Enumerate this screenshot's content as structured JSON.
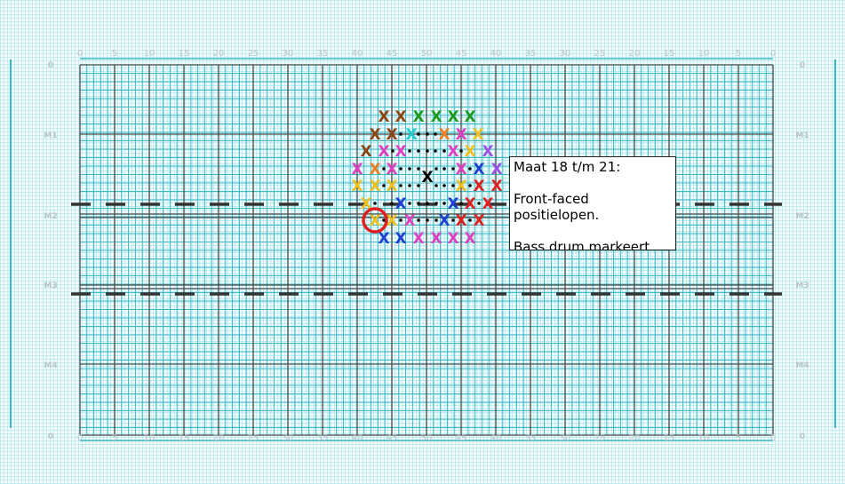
{
  "field": {
    "yard_labels": [
      "0",
      "5",
      "10",
      "15",
      "20",
      "25",
      "30",
      "35",
      "40",
      "45",
      "50",
      "45",
      "40",
      "35",
      "30",
      "25",
      "20",
      "15",
      "10",
      "5",
      "0"
    ],
    "row_labels": [
      "0",
      "M1",
      "M2",
      "M3",
      "M4",
      "0"
    ],
    "colors": {
      "major_line": "#4a4a4a",
      "minor_line": "#3bb9c6",
      "dashed_line": "#333333",
      "highlight_ring": "#e02020"
    }
  },
  "formation": {
    "marks": [
      {
        "symbol": "X",
        "color": "#8b4513"
      },
      {
        "symbol": "X",
        "color": "#8b4513"
      },
      {
        "symbol": "X",
        "color": "#1f9a1f"
      },
      {
        "symbol": "X",
        "color": "#1f9a1f"
      },
      {
        "symbol": "X",
        "color": "#1f9a1f"
      },
      {
        "symbol": "X",
        "color": "#1f9a1f"
      },
      {
        "symbol": "X",
        "color": "#8b4513"
      },
      {
        "symbol": "X",
        "color": "#8b4513"
      },
      {
        "symbol": "X",
        "color": "#22cccc"
      },
      {
        "symbol": "X",
        "color": "#f07f20"
      },
      {
        "symbol": "X",
        "color": "#e040c0"
      },
      {
        "symbol": "X",
        "color": "#f0c020"
      },
      {
        "symbol": "X",
        "color": "#8b4513"
      },
      {
        "symbol": "X",
        "color": "#e040c0"
      },
      {
        "symbol": "X",
        "color": "#e040c0"
      },
      {
        "symbol": "X",
        "color": "#e040c0"
      },
      {
        "symbol": "X",
        "color": "#f0c020"
      },
      {
        "symbol": "X",
        "color": "#a050e0"
      },
      {
        "symbol": "X",
        "color": "#e040c0"
      },
      {
        "symbol": "X",
        "color": "#f07f20"
      },
      {
        "symbol": "X",
        "color": "#e040c0"
      },
      {
        "symbol": "X",
        "color": "#000000"
      },
      {
        "symbol": "X",
        "color": "#e040c0"
      },
      {
        "symbol": "X",
        "color": "#1f3fd0"
      },
      {
        "symbol": "X",
        "color": "#a050e0"
      },
      {
        "symbol": "X",
        "color": "#f0c020"
      },
      {
        "symbol": "X",
        "color": "#f0c020"
      },
      {
        "symbol": "X",
        "color": "#f0c020"
      },
      {
        "symbol": "X",
        "color": "#f0c020"
      },
      {
        "symbol": "X",
        "color": "#e02020"
      },
      {
        "symbol": "X",
        "color": "#e02020"
      },
      {
        "symbol": "X",
        "color": "#f0c020"
      },
      {
        "symbol": "X",
        "color": "#1f3fd0"
      },
      {
        "symbol": "X",
        "color": "#1f3fd0"
      },
      {
        "symbol": "X",
        "color": "#e02020"
      },
      {
        "symbol": "X",
        "color": "#e02020"
      },
      {
        "symbol": "X",
        "color": "#f0c020"
      },
      {
        "symbol": "X",
        "color": "#f0c020"
      },
      {
        "symbol": "X",
        "color": "#e040c0"
      },
      {
        "symbol": "X",
        "color": "#1f3fd0"
      },
      {
        "symbol": "X",
        "color": "#e02020"
      },
      {
        "symbol": "X",
        "color": "#e02020"
      },
      {
        "symbol": "X",
        "color": "#1f3fd0"
      },
      {
        "symbol": "X",
        "color": "#1f3fd0"
      },
      {
        "symbol": "X",
        "color": "#e040c0"
      },
      {
        "symbol": "X",
        "color": "#e040c0"
      },
      {
        "symbol": "X",
        "color": "#e040c0"
      },
      {
        "symbol": "X",
        "color": "#e040c0"
      }
    ]
  },
  "note": {
    "text": "Maat 18 t/m 21:\n\nFront-faced positielopen.\n\nBass drum markeert."
  }
}
